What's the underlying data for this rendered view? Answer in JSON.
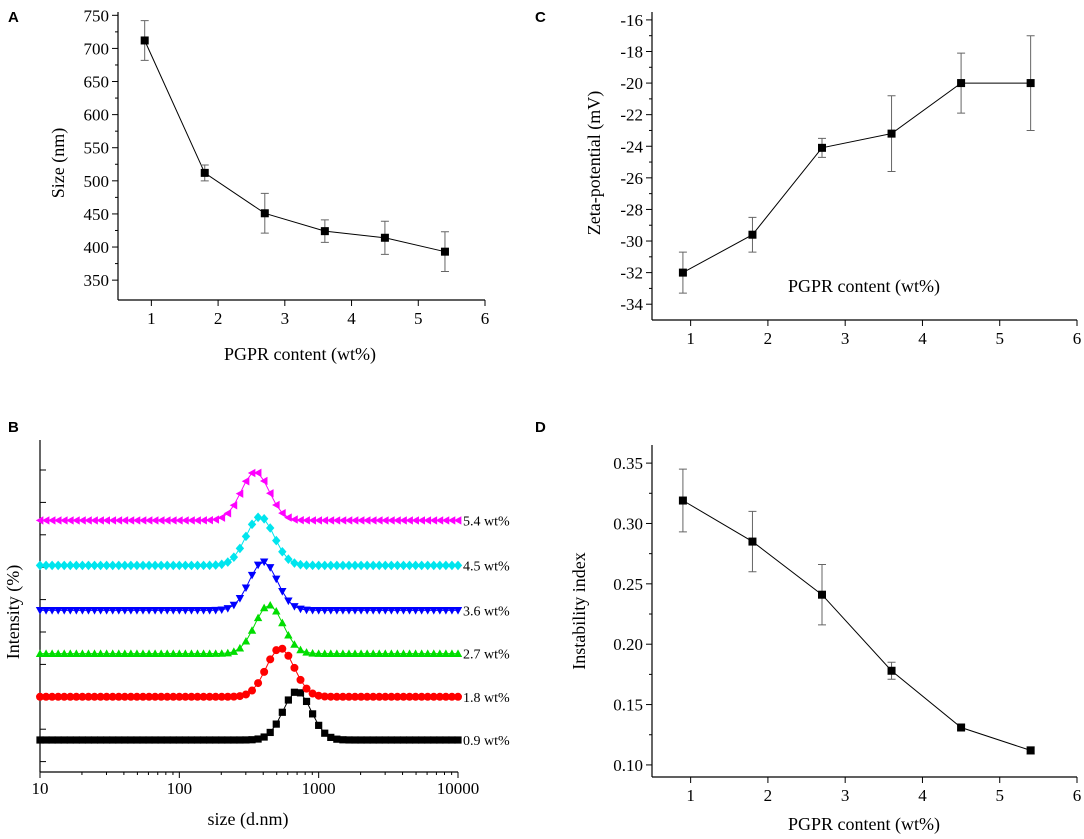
{
  "chart_data": [
    {
      "id": "A",
      "panel_label": "A",
      "type": "line",
      "xlabel": "PGPR content (wt%)",
      "ylabel": "Size (nm)",
      "xlim": [
        0.5,
        6
      ],
      "ylim": [
        320,
        755
      ],
      "xticks": [
        1,
        2,
        3,
        4,
        5,
        6
      ],
      "yticks": [
        350,
        400,
        450,
        500,
        550,
        600,
        650,
        700,
        750
      ],
      "tick_labels_x": [
        "1",
        "2",
        "3",
        "4",
        "5",
        "6"
      ],
      "tick_labels_y": [
        "350",
        "400",
        "450",
        "500",
        "550",
        "600",
        "650",
        "700",
        "750"
      ],
      "x": [
        0.9,
        1.8,
        2.7,
        3.6,
        4.5,
        5.4
      ],
      "y": [
        712,
        512,
        451,
        424,
        414,
        393
      ],
      "error": [
        30,
        12,
        30,
        17,
        25,
        30
      ]
    },
    {
      "id": "C",
      "panel_label": "C",
      "type": "line",
      "xlabel": "PGPR content (wt%)",
      "ylabel": "Zeta-potential (mV)",
      "xlim": [
        0.5,
        6
      ],
      "ylim": [
        -35,
        -15.5
      ],
      "xticks": [
        1,
        2,
        3,
        4,
        5,
        6
      ],
      "yticks": [
        -34,
        -32,
        -30,
        -28,
        -26,
        -24,
        -22,
        -20,
        -18,
        -16
      ],
      "tick_labels_x": [
        "1",
        "2",
        "3",
        "4",
        "5",
        "6"
      ],
      "tick_labels_y": [
        "-34",
        "-32",
        "-30",
        "-28",
        "-26",
        "-24",
        "-22",
        "-20",
        "-18",
        "-16"
      ],
      "x": [
        0.9,
        1.8,
        2.7,
        3.6,
        4.5,
        5.4
      ],
      "y": [
        -32.0,
        -29.6,
        -24.1,
        -23.2,
        -20.0,
        -20.0
      ],
      "error": [
        1.3,
        1.1,
        0.6,
        2.4,
        1.9,
        3.0
      ]
    },
    {
      "id": "B",
      "panel_label": "B",
      "type": "line",
      "xscale": "log",
      "xlabel": "size (d.nm)",
      "ylabel": "Intensity (%)",
      "xlim": [
        10,
        10000
      ],
      "xticks": [
        10,
        100,
        1000,
        10000
      ],
      "tick_labels_x": [
        "10",
        "100",
        "1000",
        "10000"
      ],
      "peak_height": 13.5,
      "series": [
        {
          "name": "0.9 wt%",
          "label": "0.9 wt%",
          "color": "#000000",
          "marker": "square",
          "baseline": 0,
          "peak_center": 700,
          "peak_sigma_log10": 0.1
        },
        {
          "name": "1.8 wt%",
          "label": "1.8 wt%",
          "color": "#ff0000",
          "marker": "circle",
          "baseline": 12,
          "peak_center": 530,
          "peak_sigma_log10": 0.1
        },
        {
          "name": "2.7 wt%",
          "label": "2.7 wt%",
          "color": "#00dd00",
          "marker": "triangle-up",
          "baseline": 24,
          "peak_center": 440,
          "peak_sigma_log10": 0.1
        },
        {
          "name": "3.6 wt%",
          "label": "3.6 wt%",
          "color": "#0000ff",
          "marker": "triangle-down",
          "baseline": 36,
          "peak_center": 400,
          "peak_sigma_log10": 0.1
        },
        {
          "name": "4.5 wt%",
          "label": "4.5 wt%",
          "color": "#00e5ee",
          "marker": "diamond",
          "baseline": 48.5,
          "peak_center": 380,
          "peak_sigma_log10": 0.1
        },
        {
          "name": "5.4 wt%",
          "label": "5.4 wt%",
          "color": "#ff00ff",
          "marker": "triangle-left",
          "baseline": 61,
          "peak_center": 350,
          "peak_sigma_log10": 0.1
        }
      ]
    },
    {
      "id": "D",
      "panel_label": "D",
      "type": "line",
      "xlabel": "PGPR content (wt%)",
      "ylabel": "Instability index",
      "xlim": [
        0.5,
        6
      ],
      "ylim": [
        0.09,
        0.365
      ],
      "xticks": [
        1,
        2,
        3,
        4,
        5,
        6
      ],
      "yticks": [
        0.1,
        0.15,
        0.2,
        0.25,
        0.3,
        0.35
      ],
      "tick_labels_x": [
        "1",
        "2",
        "3",
        "4",
        "5",
        "6"
      ],
      "tick_labels_y": [
        "0.10",
        "0.15",
        "0.20",
        "0.25",
        "0.30",
        "0.35"
      ],
      "x": [
        0.9,
        1.8,
        2.7,
        3.6,
        4.5,
        5.4
      ],
      "y": [
        0.319,
        0.285,
        0.241,
        0.178,
        0.131,
        0.112
      ],
      "error": [
        0.026,
        0.025,
        0.025,
        0.007,
        0.002,
        0.003
      ]
    }
  ]
}
